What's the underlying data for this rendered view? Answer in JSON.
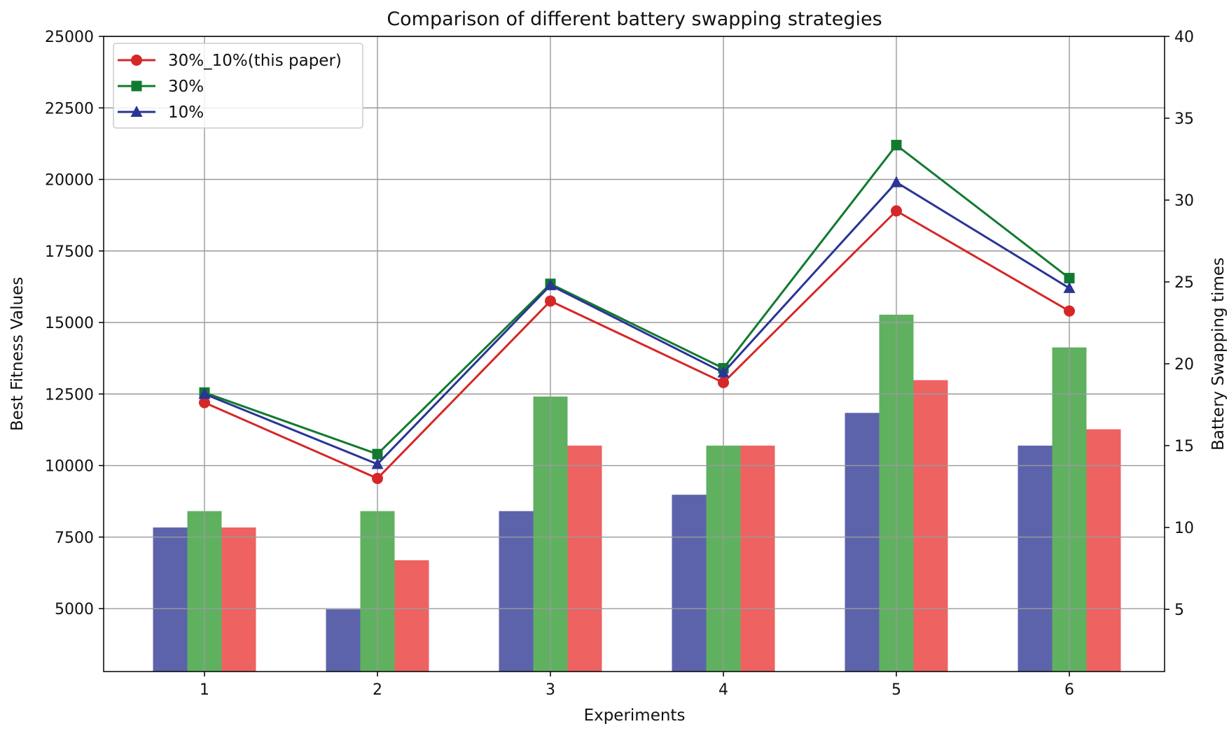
{
  "chart_data": {
    "type": "bar+line",
    "title": "Comparison of different battery swapping strategies",
    "xlabel": "Experiments",
    "ylabel_left": "Best Fitness Values",
    "ylabel_right": "Battery Swapping times",
    "categories": [
      "1",
      "2",
      "3",
      "4",
      "5",
      "6"
    ],
    "ylim_left": [
      2800,
      25000
    ],
    "yticks_left": [
      "5000",
      "7500",
      "10000",
      "12500",
      "15000",
      "17500",
      "20000",
      "22500",
      "25000"
    ],
    "ylim_right": [
      1.2,
      40
    ],
    "yticks_right": [
      "5",
      "10",
      "15",
      "20",
      "25",
      "30",
      "35",
      "40"
    ],
    "grid": true,
    "legend_position": "top-left",
    "line_series": [
      {
        "name": "30%_10%(this paper)",
        "color": "#d62728",
        "marker": "circle",
        "values": [
          12200,
          9550,
          15750,
          12900,
          18900,
          15400
        ]
      },
      {
        "name": "30%",
        "color": "#117a2f",
        "marker": "square",
        "values": [
          12550,
          10400,
          16350,
          13400,
          21200,
          16550
        ]
      },
      {
        "name": "10%",
        "color": "#2a3595",
        "marker": "triangle",
        "values": [
          12500,
          10050,
          16300,
          13250,
          19900,
          16200
        ]
      }
    ],
    "bar_series": [
      {
        "color": "#5d63ab",
        "values": [
          10,
          5,
          11,
          12,
          17,
          15
        ]
      },
      {
        "color": "#5fb160",
        "values": [
          11,
          11,
          18,
          15,
          23,
          21
        ]
      },
      {
        "color": "#ee6262",
        "values": [
          10,
          8,
          15,
          15,
          19,
          16
        ]
      }
    ]
  }
}
